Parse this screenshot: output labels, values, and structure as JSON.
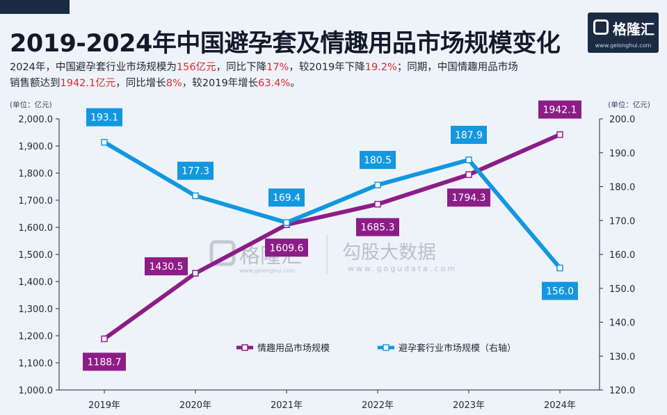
{
  "title": "2019-2024年中国避孕套及情趣用品市场规模变化",
  "summary": {
    "line1": [
      {
        "text": "2024年，中国避孕套行业市场规模为",
        "hl": false
      },
      {
        "text": "156亿元",
        "hl": true
      },
      {
        "text": "，同比下降",
        "hl": false
      },
      {
        "text": "17%",
        "hl": true
      },
      {
        "text": "，较2019年下降",
        "hl": false
      },
      {
        "text": "19.2%",
        "hl": true
      },
      {
        "text": "；同期，中国情趣用品市场",
        "hl": false
      }
    ],
    "line2": [
      {
        "text": "销售额达到",
        "hl": false
      },
      {
        "text": "1942.1亿元",
        "hl": true
      },
      {
        "text": "，同比增长",
        "hl": false
      },
      {
        "text": "8%",
        "hl": true
      },
      {
        "text": "，较2019年增长",
        "hl": false
      },
      {
        "text": "63.4%",
        "hl": true
      },
      {
        "text": "。",
        "hl": false
      }
    ]
  },
  "logo": {
    "name": "格隆汇",
    "url": "www.gelonghui.com"
  },
  "watermark": {
    "brand1": "格隆汇",
    "brand1_url": "www.gelonghui.com",
    "brand2": "勾股大数据",
    "brand2_url": "www.gogudata.com"
  },
  "colors": {
    "purple": "#8c1d86",
    "blue": "#1297e0",
    "highlight": "#e0262b",
    "background": "#eef3fa"
  },
  "chart_data": {
    "type": "line",
    "categories": [
      "2019年",
      "2020年",
      "2021年",
      "2022年",
      "2023年",
      "2024年"
    ],
    "left_axis": {
      "unit": "(单位：亿元)",
      "min": 1000,
      "max": 2000,
      "step": 100,
      "ticks": [
        "1,000.0",
        "1,100.0",
        "1,200.0",
        "1,300.0",
        "1,400.0",
        "1,500.0",
        "1,600.0",
        "1,700.0",
        "1,800.0",
        "1,900.0",
        "2,000.0"
      ]
    },
    "right_axis": {
      "unit": "(单位：亿元)",
      "min": 120,
      "max": 200,
      "step": 10,
      "ticks": [
        "120.0",
        "130.0",
        "140.0",
        "150.0",
        "160.0",
        "170.0",
        "180.0",
        "190.0",
        "200.0"
      ]
    },
    "series": [
      {
        "name": "情趣用品市场规模",
        "axis": "left",
        "color": "#8c1d86",
        "values": [
          1188.7,
          1430.5,
          1609.6,
          1685.3,
          1794.3,
          1942.1
        ],
        "labels": [
          "1188.7",
          "1430.5",
          "1609.6",
          "1685.3",
          "1794.3",
          "1942.1"
        ],
        "label_position": [
          "below",
          "left",
          "below",
          "below",
          "below",
          "above"
        ]
      },
      {
        "name": "避孕套行业市场规模（右轴）",
        "axis": "right",
        "color": "#1297e0",
        "values": [
          193.1,
          177.3,
          169.4,
          180.5,
          187.9,
          156.0
        ],
        "labels": [
          "193.1",
          "177.3",
          "169.4",
          "180.5",
          "187.9",
          "156.0"
        ],
        "label_position": [
          "above",
          "above",
          "above",
          "above",
          "above",
          "below"
        ]
      }
    ],
    "legend": "bottom-center",
    "grid": false
  }
}
